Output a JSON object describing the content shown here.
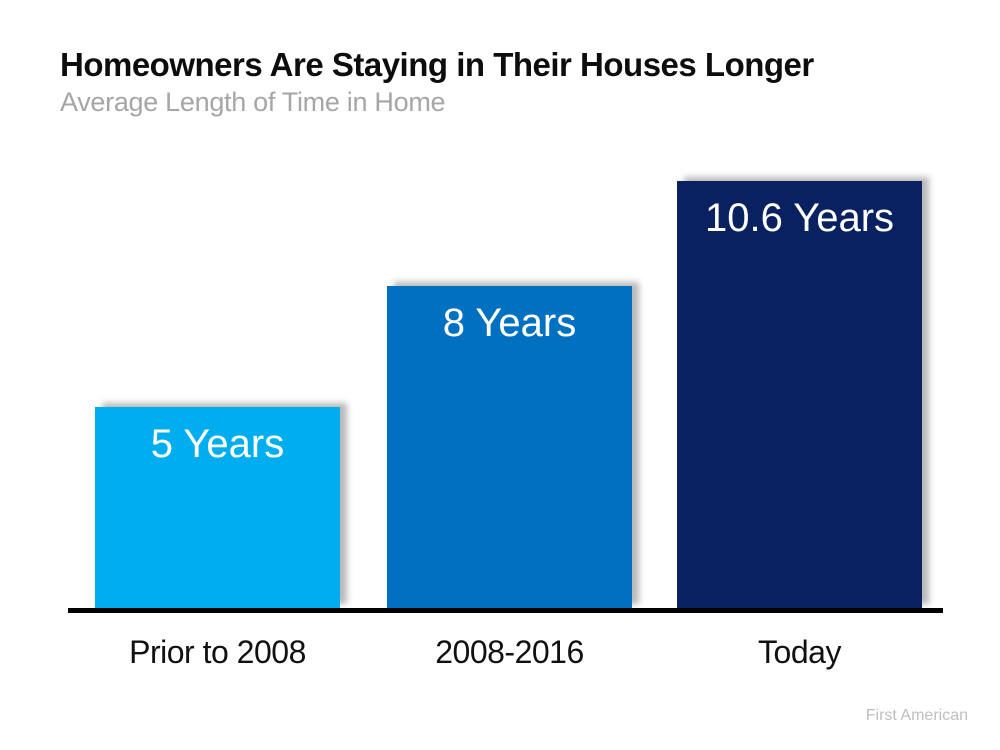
{
  "header": {
    "title": "Homeowners Are Staying in Their Houses Longer",
    "subtitle": "Average Length of Time in Home"
  },
  "footer": {
    "source": "First American"
  },
  "chart_data": {
    "type": "bar",
    "title": "Homeowners Are Staying in Their Houses Longer",
    "subtitle": "Average Length of Time in Home",
    "categories": [
      "Prior to 2008",
      "2008-2016",
      "Today"
    ],
    "values": [
      5,
      8,
      10.6
    ],
    "bar_value_labels": [
      "5 Years",
      "8 Years",
      "10.6 Years"
    ],
    "bar_colors": [
      "#00AEEF",
      "#0070C0",
      "#0A2161"
    ],
    "xlabel": "",
    "ylabel": "",
    "ylim": [
      0,
      10.6
    ],
    "gridlines": false,
    "legend": "none",
    "axis_line_color": "#000000",
    "title_color": "#0D0D0D",
    "subtitle_color": "#A6A6A6",
    "source_color": "#BFBFBF",
    "source": "First American"
  }
}
